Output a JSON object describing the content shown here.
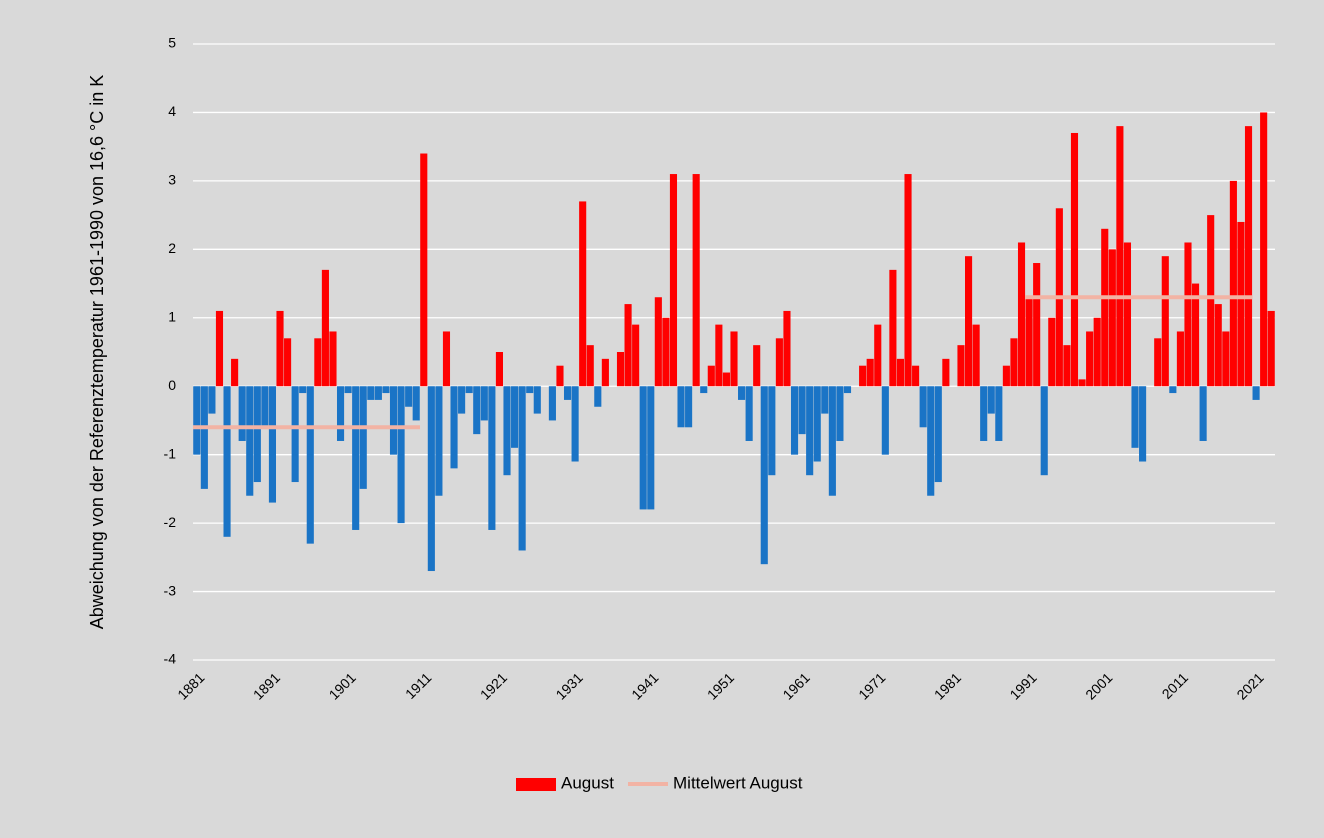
{
  "chart_data": {
    "type": "bar",
    "y_label": "Abweichung von der Referenztemperatur 1961-1990 von 16,6 °C in K",
    "x": [
      1881,
      1882,
      1883,
      1884,
      1885,
      1886,
      1887,
      1888,
      1889,
      1890,
      1891,
      1892,
      1893,
      1894,
      1895,
      1896,
      1897,
      1898,
      1899,
      1900,
      1901,
      1902,
      1903,
      1904,
      1905,
      1906,
      1907,
      1908,
      1909,
      1910,
      1911,
      1912,
      1913,
      1914,
      1915,
      1916,
      1917,
      1918,
      1919,
      1920,
      1921,
      1922,
      1923,
      1924,
      1925,
      1926,
      1927,
      1928,
      1929,
      1930,
      1931,
      1932,
      1933,
      1934,
      1935,
      1936,
      1937,
      1938,
      1939,
      1940,
      1941,
      1942,
      1943,
      1944,
      1945,
      1946,
      1947,
      1948,
      1949,
      1950,
      1951,
      1952,
      1953,
      1954,
      1955,
      1956,
      1957,
      1958,
      1959,
      1960,
      1961,
      1962,
      1963,
      1964,
      1965,
      1966,
      1967,
      1968,
      1969,
      1970,
      1971,
      1972,
      1973,
      1974,
      1975,
      1976,
      1977,
      1978,
      1979,
      1980,
      1981,
      1982,
      1983,
      1984,
      1985,
      1986,
      1987,
      1988,
      1989,
      1990,
      1991,
      1992,
      1993,
      1994,
      1995,
      1996,
      1997,
      1998,
      1999,
      2000,
      2001,
      2002,
      2003,
      2004,
      2005,
      2006,
      2007,
      2008,
      2009,
      2010,
      2011,
      2012,
      2013,
      2014,
      2015,
      2016,
      2017,
      2018,
      2019,
      2020,
      2021,
      2022,
      2023
    ],
    "series": [
      {
        "name": "August",
        "color": "#ff0000",
        "negative_color": "#1a74c6",
        "values": [
          -1.0,
          -1.5,
          -0.4,
          1.1,
          -2.2,
          0.4,
          -0.8,
          -1.6,
          -1.4,
          -0.6,
          -1.7,
          1.1,
          0.7,
          -1.4,
          -0.1,
          -2.3,
          0.7,
          1.7,
          0.8,
          -0.8,
          -0.1,
          -2.1,
          -1.5,
          -0.2,
          -0.2,
          -0.1,
          -1.0,
          -2.0,
          -0.3,
          -0.5,
          3.4,
          -2.7,
          -1.6,
          0.8,
          -1.2,
          -0.4,
          -0.1,
          -0.7,
          -0.5,
          -2.1,
          0.5,
          -1.3,
          -0.9,
          -2.4,
          -0.1,
          -0.4,
          0,
          -0.5,
          0.3,
          -0.2,
          -1.1,
          2.7,
          0.6,
          -0.3,
          0.4,
          0,
          0.5,
          1.2,
          0.9,
          -1.8,
          -1.8,
          1.3,
          1.0,
          3.1,
          -0.6,
          -0.6,
          3.1,
          -0.1,
          0.3,
          0.9,
          0.2,
          0.8,
          -0.2,
          -0.8,
          0.6,
          -2.6,
          -1.3,
          0.7,
          1.1,
          -1.0,
          -0.7,
          -1.3,
          -1.1,
          -0.4,
          -1.6,
          -0.8,
          -0.1,
          0,
          0.3,
          0.4,
          0.9,
          -1.0,
          1.7,
          0.4,
          3.1,
          0.3,
          -0.6,
          -1.6,
          -1.4,
          0.4,
          0,
          0.6,
          1.9,
          0.9,
          -0.8,
          -0.4,
          -0.8,
          0.3,
          0.7,
          2.1,
          1.3,
          1.8,
          -1.3,
          1.0,
          2.6,
          0.6,
          3.7,
          0.1,
          0.8,
          1.0,
          2.3,
          2.0,
          3.8,
          2.1,
          -0.9,
          -1.1,
          0,
          0.7,
          1.9,
          -0.1,
          0.8,
          2.1,
          1.5,
          -0.8,
          2.5,
          1.2,
          0.8,
          3.0,
          2.4,
          3.8,
          -0.2,
          4.0,
          1.1
        ]
      },
      {
        "name": "Mittelwert August",
        "color": "#f2b3a4",
        "periods": [
          {
            "start": 1881,
            "end": 1910,
            "value": -0.6
          },
          {
            "start": 1991,
            "end": 2020,
            "value": 1.3
          }
        ]
      }
    ],
    "xlim": [
      1880.5,
      2023.5
    ],
    "xticks": [
      1881,
      1891,
      1901,
      1911,
      1921,
      1931,
      1941,
      1951,
      1961,
      1971,
      1981,
      1991,
      2001,
      2011,
      2021
    ],
    "ylim": [
      -4,
      5
    ],
    "yticks": [
      -4,
      -3,
      -2,
      -1,
      0,
      1,
      2,
      3,
      4,
      5
    ],
    "grid": true,
    "legend": "bottom"
  }
}
